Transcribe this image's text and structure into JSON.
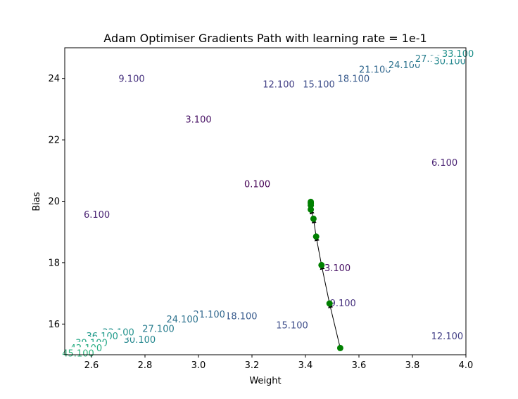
{
  "chart_data": {
    "type": "contour",
    "title": "Adam Optimiser Gradients Path with learning rate = 1e-1",
    "xlabel": "Weight",
    "ylabel": "Bias",
    "xlim": [
      2.5,
      4.0
    ],
    "ylim": [
      15.0,
      25.0
    ],
    "xticks": [
      "2.6",
      "2.8",
      "3.0",
      "3.2",
      "3.4",
      "3.6",
      "3.8",
      "4.0"
    ],
    "yticks": [
      "16",
      "18",
      "20",
      "22",
      "24"
    ],
    "grid": false,
    "contour_levels": [
      "0.100",
      "3.100",
      "6.100",
      "9.100",
      "12.100",
      "15.100",
      "18.100",
      "21.100",
      "24.100",
      "27.100",
      "30.100",
      "33.100",
      "36.100",
      "39.100",
      "42.100",
      "45.100"
    ],
    "contour_colors": {
      "0.100": "#440154",
      "3.100": "#471164",
      "6.100": "#482172",
      "9.100": "#46317e",
      "12.100": "#423f85",
      "15.100": "#3d4d8a",
      "18.100": "#375a8c",
      "21.100": "#31678e",
      "24.100": "#2c728e",
      "27.100": "#287d8e",
      "30.100": "#24878e",
      "33.100": "#21918c",
      "36.100": "#1f9a8a",
      "39.100": "#21a685",
      "42.100": "#26ad81",
      "45.100": "#2eb37c"
    },
    "path_color": "#008000",
    "path": [
      {
        "w": 3.53,
        "b": 15.22
      },
      {
        "w": 3.49,
        "b": 16.67
      },
      {
        "w": 3.46,
        "b": 17.92
      },
      {
        "w": 3.44,
        "b": 18.85
      },
      {
        "w": 3.43,
        "b": 19.43
      },
      {
        "w": 3.42,
        "b": 19.73
      },
      {
        "w": 3.42,
        "b": 19.87
      },
      {
        "w": 3.42,
        "b": 19.94
      },
      {
        "w": 3.42,
        "b": 19.98
      }
    ]
  }
}
